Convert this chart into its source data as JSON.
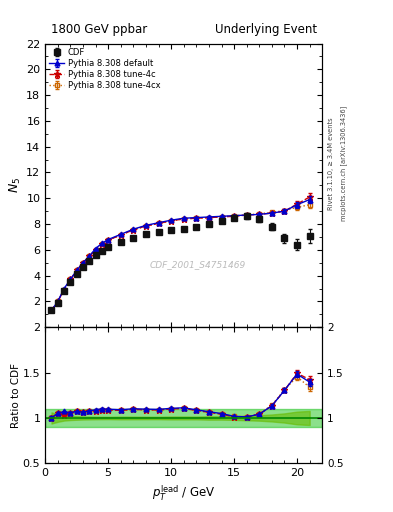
{
  "title_left": "1800 GeV ppbar",
  "title_right": "Underlying Event",
  "ylabel_main": "$N_5$",
  "ylabel_ratio": "Ratio to CDF",
  "xlabel": "$p_T^{\\rm lead}$ / GeV",
  "right_label_top": "Rivet 3.1.10, ≥ 3.4M events",
  "right_label_bottom": "mcplots.cern.ch [arXiv:1306.3436]",
  "watermark": "CDF_2001_S4751469",
  "xlim": [
    0,
    22
  ],
  "ylim_main": [
    0,
    22
  ],
  "ylim_ratio": [
    0.5,
    2.0
  ],
  "cdf_x": [
    0.5,
    1.0,
    1.5,
    2.0,
    2.5,
    3.0,
    3.5,
    4.0,
    4.5,
    5.0,
    6.0,
    7.0,
    8.0,
    9.0,
    10.0,
    11.0,
    12.0,
    13.0,
    14.0,
    15.0,
    16.0,
    17.0,
    18.0,
    19.0,
    20.0,
    21.0
  ],
  "cdf_y": [
    1.3,
    1.9,
    2.8,
    3.5,
    4.1,
    4.7,
    5.1,
    5.6,
    5.9,
    6.2,
    6.6,
    6.9,
    7.2,
    7.4,
    7.5,
    7.6,
    7.8,
    8.0,
    8.2,
    8.5,
    8.6,
    8.4,
    7.8,
    6.9,
    6.4,
    7.1
  ],
  "cdf_yerr": [
    0.08,
    0.08,
    0.08,
    0.08,
    0.08,
    0.08,
    0.08,
    0.08,
    0.08,
    0.08,
    0.1,
    0.1,
    0.1,
    0.1,
    0.12,
    0.12,
    0.12,
    0.15,
    0.15,
    0.18,
    0.22,
    0.25,
    0.3,
    0.35,
    0.45,
    0.55
  ],
  "default_x": [
    0.5,
    1.0,
    1.5,
    2.0,
    2.5,
    3.0,
    3.5,
    4.0,
    4.5,
    5.0,
    6.0,
    7.0,
    8.0,
    9.0,
    10.0,
    11.0,
    12.0,
    13.0,
    14.0,
    15.0,
    16.0,
    17.0,
    18.0,
    19.0,
    20.0,
    21.0
  ],
  "default_y": [
    1.3,
    2.0,
    3.0,
    3.7,
    4.4,
    5.0,
    5.5,
    6.1,
    6.5,
    6.8,
    7.2,
    7.6,
    7.9,
    8.1,
    8.3,
    8.45,
    8.5,
    8.55,
    8.6,
    8.65,
    8.7,
    8.75,
    8.85,
    9.0,
    9.5,
    9.9
  ],
  "default_yerr": [
    0.03,
    0.03,
    0.03,
    0.03,
    0.03,
    0.03,
    0.03,
    0.03,
    0.03,
    0.03,
    0.03,
    0.03,
    0.03,
    0.03,
    0.04,
    0.04,
    0.04,
    0.04,
    0.05,
    0.06,
    0.07,
    0.09,
    0.12,
    0.15,
    0.22,
    0.28
  ],
  "tune4c_x": [
    0.5,
    1.0,
    1.5,
    2.0,
    2.5,
    3.0,
    3.5,
    4.0,
    4.5,
    5.0,
    6.0,
    7.0,
    8.0,
    9.0,
    10.0,
    11.0,
    12.0,
    13.0,
    14.0,
    15.0,
    16.0,
    17.0,
    18.0,
    19.0,
    20.0,
    21.0
  ],
  "tune4c_y": [
    1.3,
    2.0,
    2.9,
    3.7,
    4.4,
    5.0,
    5.5,
    6.0,
    6.45,
    6.75,
    7.15,
    7.55,
    7.85,
    8.05,
    8.25,
    8.4,
    8.45,
    8.5,
    8.55,
    8.6,
    8.7,
    8.75,
    8.85,
    9.0,
    9.55,
    10.1
  ],
  "tune4c_yerr": [
    0.03,
    0.03,
    0.03,
    0.03,
    0.03,
    0.03,
    0.03,
    0.03,
    0.03,
    0.03,
    0.03,
    0.03,
    0.03,
    0.03,
    0.04,
    0.04,
    0.04,
    0.04,
    0.05,
    0.06,
    0.07,
    0.09,
    0.12,
    0.15,
    0.22,
    0.28
  ],
  "tune4cx_x": [
    0.5,
    1.0,
    1.5,
    2.0,
    2.5,
    3.0,
    3.5,
    4.0,
    4.5,
    5.0,
    6.0,
    7.0,
    8.0,
    9.0,
    10.0,
    11.0,
    12.0,
    13.0,
    14.0,
    15.0,
    16.0,
    17.0,
    18.0,
    19.0,
    20.0,
    21.0
  ],
  "tune4cx_y": [
    1.3,
    2.0,
    2.9,
    3.7,
    4.4,
    5.0,
    5.5,
    6.0,
    6.45,
    6.75,
    7.15,
    7.55,
    7.85,
    8.05,
    8.25,
    8.4,
    8.45,
    8.5,
    8.55,
    8.65,
    8.7,
    8.8,
    8.9,
    9.05,
    9.3,
    9.5
  ],
  "tune4cx_yerr": [
    0.03,
    0.03,
    0.03,
    0.03,
    0.03,
    0.03,
    0.03,
    0.03,
    0.03,
    0.03,
    0.03,
    0.03,
    0.03,
    0.03,
    0.04,
    0.04,
    0.04,
    0.04,
    0.05,
    0.06,
    0.07,
    0.09,
    0.12,
    0.15,
    0.22,
    0.28
  ],
  "color_default": "#0000cc",
  "color_tune4c": "#cc0000",
  "color_tune4cx": "#cc6600",
  "color_cdf": "#111111",
  "color_green_band": "#00bb00",
  "color_yellow_band": "#bbbb00",
  "legend_entries": [
    "CDF",
    "Pythia 8.308 default",
    "Pythia 8.308 tune-4c",
    "Pythia 8.308 tune-4cx"
  ]
}
